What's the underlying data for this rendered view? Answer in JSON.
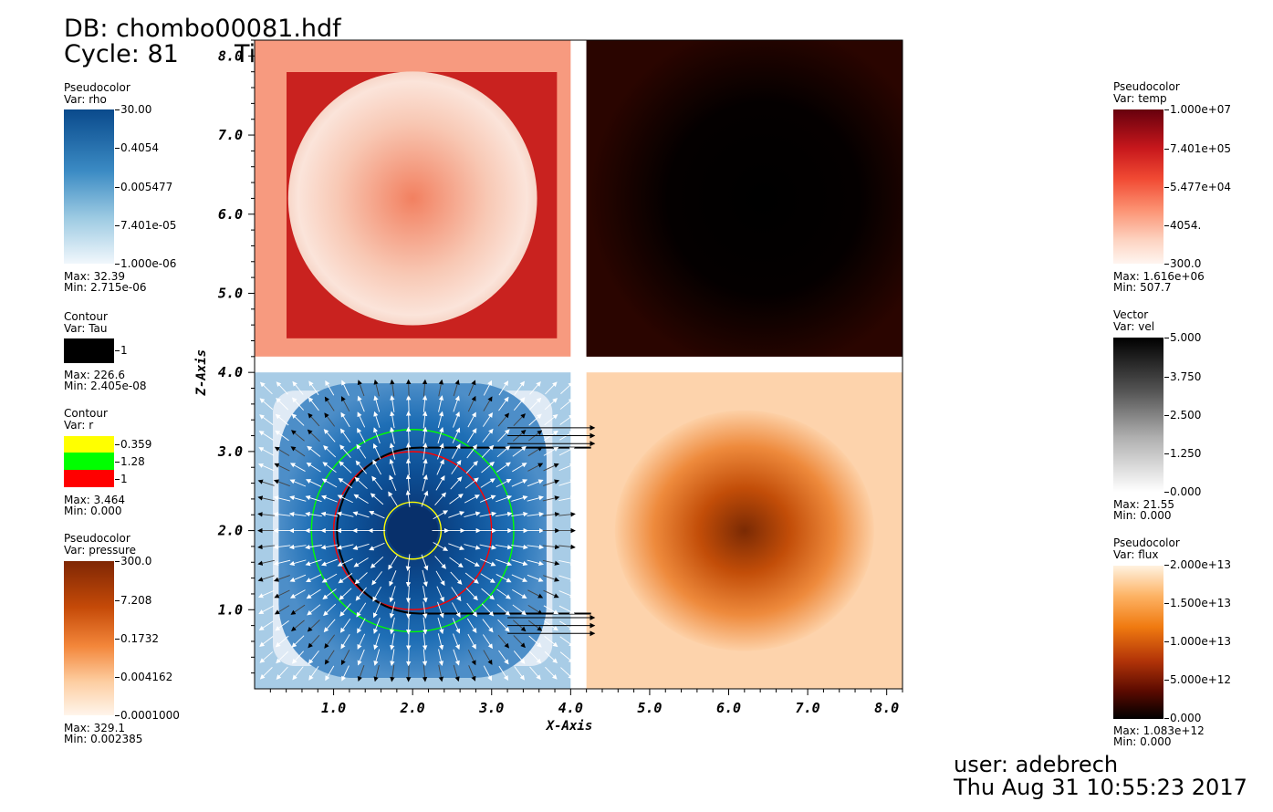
{
  "header": {
    "db_label": "DB: chombo00081.hdf",
    "cycle_label": "Cycle: 81",
    "time_label": "Time:0.81"
  },
  "footer": {
    "user_label": "user: adebrech",
    "date_label": "Thu Aug 31 10:55:23 2017"
  },
  "legends": {
    "rho": {
      "plot_type": "Pseudocolor",
      "var_label": "Var: rho",
      "ticks": [
        "30.00",
        "0.4054",
        "0.005477",
        "7.401e-05",
        "1.000e-06"
      ],
      "max_label": "Max:  32.39",
      "min_label": "Min:  2.715e-06"
    },
    "tau": {
      "plot_type": "Contour",
      "var_label": "Var: Tau",
      "ticks": [
        "1"
      ],
      "max_label": "Max:  226.6",
      "min_label": "Min:  2.405e-08"
    },
    "r": {
      "plot_type": "Contour",
      "var_label": "Var: r",
      "ticks": [
        "0.359",
        "1.28",
        "1"
      ],
      "max_label": "Max:  3.464",
      "min_label": "Min:  0.000"
    },
    "pressure": {
      "plot_type": "Pseudocolor",
      "var_label": "Var: pressure",
      "ticks": [
        "300.0",
        "7.208",
        "0.1732",
        "0.004162",
        "0.0001000"
      ],
      "max_label": "Max:  329.1",
      "min_label": "Min:  0.002385"
    },
    "temp": {
      "plot_type": "Pseudocolor",
      "var_label": "Var: temp",
      "ticks": [
        "1.000e+07",
        "7.401e+05",
        "5.477e+04",
        "4054.",
        "300.0"
      ],
      "max_label": "Max:  1.616e+06",
      "min_label": "Min:  507.7"
    },
    "vel": {
      "plot_type": "Vector",
      "var_label": "Var: vel",
      "ticks": [
        "5.000",
        "3.750",
        "2.500",
        "1.250",
        "0.000"
      ],
      "max_label": "Max:  21.55",
      "min_label": "Min:  0.000"
    },
    "flux": {
      "plot_type": "Pseudocolor",
      "var_label": "Var: flux",
      "ticks": [
        "2.000e+13",
        "1.500e+13",
        "1.000e+13",
        "5.000e+12",
        "0.000"
      ],
      "max_label": "Max:  1.083e+12",
      "min_label": "Min:  0.000"
    }
  },
  "colors": {
    "contour_r": [
      "#ffff00",
      "#00ff00",
      "#ff0000"
    ],
    "contour_tau": "#000000"
  },
  "chart_data": {
    "type": "heatmap",
    "xlabel": "X-Axis",
    "ylabel": "Z-Axis",
    "xlim": [
      0,
      8.2
    ],
    "ylim": [
      0,
      8.2
    ],
    "x_ticks": [
      "1.0",
      "2.0",
      "3.0",
      "4.0",
      "5.0",
      "6.0",
      "7.0",
      "8.0"
    ],
    "y_ticks": [
      "1.0",
      "2.0",
      "3.0",
      "4.0",
      "5.0",
      "6.0",
      "7.0",
      "8.0"
    ],
    "panels": [
      {
        "variable": "temp",
        "x_range": [
          0,
          4.0
        ],
        "y_range": [
          4.2,
          8.2
        ],
        "center": [
          2.0,
          6.2
        ],
        "radius": 1.5
      },
      {
        "variable": "flux",
        "x_range": [
          4.2,
          8.2
        ],
        "y_range": [
          4.2,
          8.2
        ],
        "center": [
          6.2,
          6.2
        ]
      },
      {
        "variable": "rho",
        "x_range": [
          0,
          4.0
        ],
        "y_range": [
          0,
          4.0
        ],
        "center": [
          2.0,
          2.0
        ],
        "radius": 1.5
      },
      {
        "variable": "pressure",
        "x_range": [
          4.2,
          8.2
        ],
        "y_range": [
          0,
          4.0
        ],
        "center": [
          6.2,
          2.0
        ]
      }
    ],
    "contours": [
      {
        "variable": "r",
        "level": 0.359,
        "center": [
          2.0,
          2.0
        ],
        "radius": 0.36
      },
      {
        "variable": "r",
        "level": 1.28,
        "center": [
          2.0,
          2.0
        ],
        "radius": 1.28
      },
      {
        "variable": "r",
        "level": 1,
        "center": [
          2.0,
          2.0
        ],
        "radius": 1.0
      },
      {
        "variable": "Tau",
        "level": 1,
        "center": [
          2.0,
          2.0
        ],
        "radius": 1.05
      }
    ]
  }
}
